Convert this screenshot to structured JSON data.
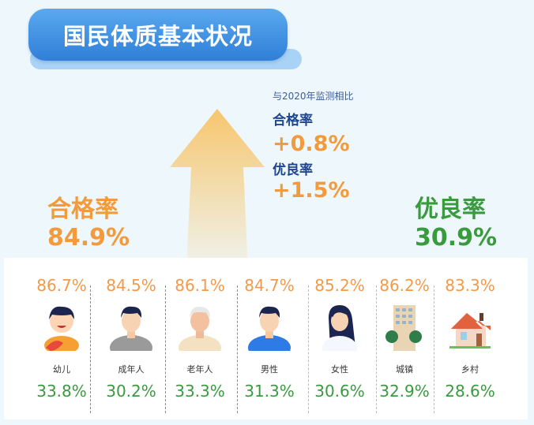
{
  "title": "国民体质基本状况",
  "comparison": {
    "subtitle": "与2020年监测相比",
    "pass_label": "合格率",
    "pass_change": "+0.8%",
    "excellent_label": "优良率",
    "excellent_change": "+1.5%"
  },
  "overall": {
    "pass_label": "合格率",
    "pass_value": "84.9%",
    "excellent_label": "优良率",
    "excellent_value": "30.9%"
  },
  "colors": {
    "pass": "#f39a3c",
    "excellent": "#3a9a3e",
    "title_bg": "#3b8ee0"
  },
  "groups": [
    {
      "name": "幼儿",
      "pass": "86.7%",
      "excellent": "33.8%",
      "icon": "child-icon"
    },
    {
      "name": "成年人",
      "pass": "84.5%",
      "excellent": "30.2%",
      "icon": "adult-icon"
    },
    {
      "name": "老年人",
      "pass": "86.1%",
      "excellent": "33.3%",
      "icon": "elderly-icon"
    },
    {
      "name": "男性",
      "pass": "84.7%",
      "excellent": "31.3%",
      "icon": "male-icon"
    },
    {
      "name": "女性",
      "pass": "85.2%",
      "excellent": "30.6%",
      "icon": "female-icon"
    },
    {
      "name": "城镇",
      "pass": "86.2%",
      "excellent": "32.9%",
      "icon": "building-icon"
    },
    {
      "name": "乡村",
      "pass": "83.3%",
      "excellent": "28.6%",
      "icon": "house-icon"
    }
  ]
}
